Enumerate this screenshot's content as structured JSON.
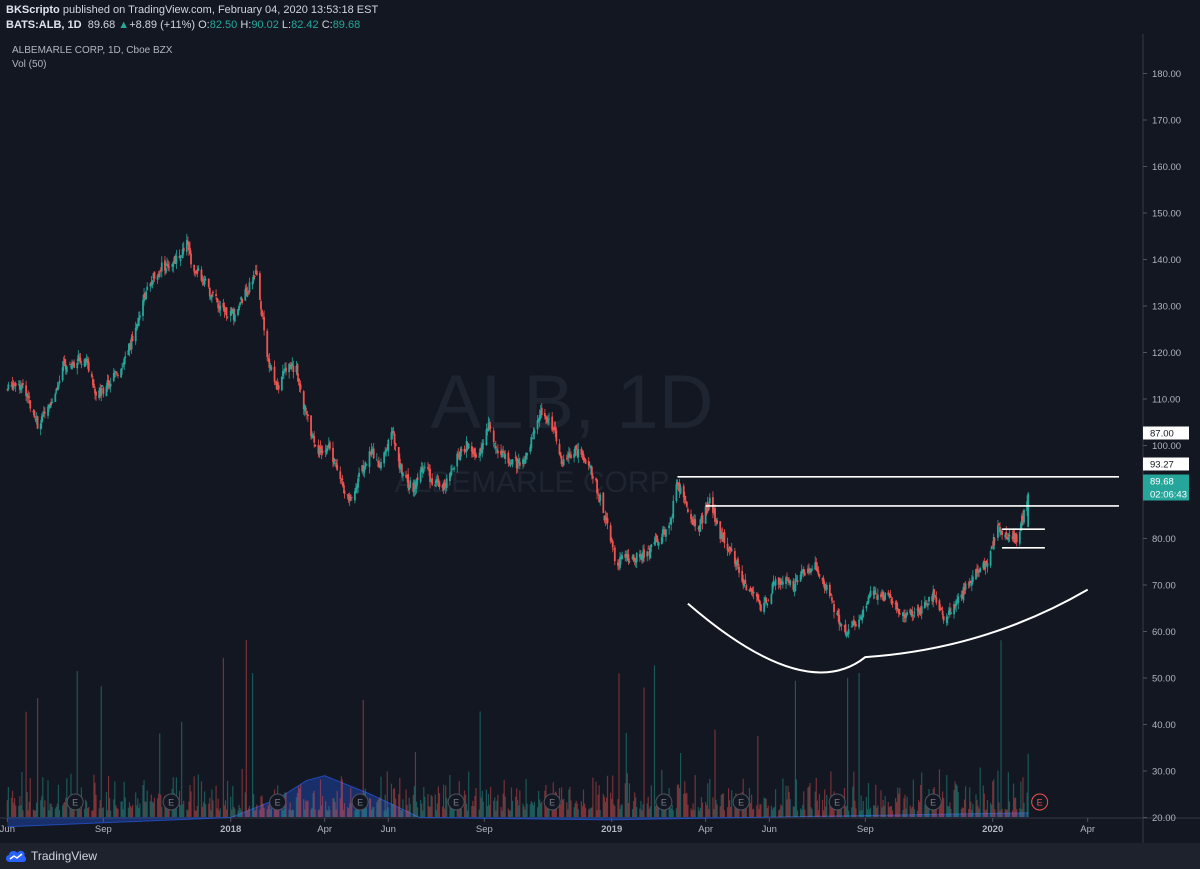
{
  "header": {
    "author": "BKScripto",
    "published": " published on TradingView.com, February 04, 2020 13:53:18 EST",
    "symbol": "BATS:ALB, 1D",
    "price": "89.68",
    "change": "+8.89 (+11%)",
    "o_label": "O:",
    "o_value": "82.50",
    "h_label": "H:",
    "h_value": "90.02",
    "l_label": "L:",
    "l_value": "82.42",
    "c_label": "C:",
    "c_value": "89.68"
  },
  "legend": {
    "title": "ALBEMARLE CORP, 1D, Cboe BZX",
    "volume": "Vol (50)"
  },
  "watermark": {
    "symbol": "ALB, 1D",
    "name": "ALBEMARLE CORP"
  },
  "footer": {
    "brand": "TradingView"
  },
  "colors": {
    "background": "#131722",
    "up": "#26a69a",
    "down": "#ef5350",
    "volume_ma": "#2962ff",
    "annotation": "#ffffff"
  },
  "chart_data": {
    "type": "candlestick",
    "ylim": [
      15,
      185
    ],
    "y_ticks": [
      "180.00",
      "170.00",
      "160.00",
      "150.00",
      "140.00",
      "130.00",
      "120.00",
      "110.00",
      "100.00",
      "90.00",
      "80.00",
      "70.00",
      "60.00",
      "50.00",
      "40.00",
      "30.00",
      "20.00"
    ],
    "x_ticks": [
      "Jun",
      "Sep",
      "2018",
      "Apr",
      "Jun",
      "Sep",
      "2019",
      "Apr",
      "Jun",
      "Sep",
      "2020",
      "Apr"
    ],
    "bold_ticks": [
      "2018",
      "2019",
      "2020"
    ],
    "price_labels": [
      {
        "text": "87.00",
        "style": "white"
      },
      {
        "text": "93.27",
        "style": "white"
      },
      {
        "text": "89.68",
        "style": "green"
      },
      {
        "text": "02:06:43",
        "style": "green"
      }
    ],
    "earnings_marker": "E",
    "close_path": [
      [
        "2017-06-01",
        112
      ],
      [
        "2017-06-10",
        114
      ],
      [
        "2017-06-20",
        111
      ],
      [
        "2017-07-01",
        104
      ],
      [
        "2017-07-15",
        110
      ],
      [
        "2017-07-25",
        117
      ],
      [
        "2017-08-05",
        118
      ],
      [
        "2017-08-15",
        119
      ],
      [
        "2017-08-25",
        111
      ],
      [
        "2017-09-05",
        113
      ],
      [
        "2017-09-15",
        116
      ],
      [
        "2017-09-25",
        120
      ],
      [
        "2017-10-01",
        125
      ],
      [
        "2017-10-10",
        132
      ],
      [
        "2017-10-20",
        137
      ],
      [
        "2017-11-01",
        139
      ],
      [
        "2017-11-10",
        140
      ],
      [
        "2017-11-20",
        143
      ],
      [
        "2017-11-25",
        139
      ],
      [
        "2017-12-05",
        136
      ],
      [
        "2017-12-15",
        132
      ],
      [
        "2017-12-25",
        129
      ],
      [
        "2018-01-05",
        128
      ],
      [
        "2018-01-15",
        133
      ],
      [
        "2018-01-25",
        137
      ],
      [
        "2018-02-01",
        127
      ],
      [
        "2018-02-05",
        119
      ],
      [
        "2018-02-15",
        112
      ],
      [
        "2018-02-25",
        118
      ],
      [
        "2018-03-05",
        116
      ],
      [
        "2018-03-15",
        106
      ],
      [
        "2018-03-25",
        98
      ],
      [
        "2018-04-05",
        100
      ],
      [
        "2018-04-15",
        93
      ],
      [
        "2018-04-25",
        88
      ],
      [
        "2018-05-05",
        94
      ],
      [
        "2018-05-15",
        99
      ],
      [
        "2018-05-25",
        96
      ],
      [
        "2018-06-05",
        103
      ],
      [
        "2018-06-15",
        93
      ],
      [
        "2018-06-25",
        91
      ],
      [
        "2018-07-05",
        95
      ],
      [
        "2018-07-15",
        92
      ],
      [
        "2018-07-25",
        91
      ],
      [
        "2018-08-05",
        97
      ],
      [
        "2018-08-15",
        100
      ],
      [
        "2018-08-25",
        97
      ],
      [
        "2018-09-05",
        104
      ],
      [
        "2018-09-15",
        99
      ],
      [
        "2018-09-25",
        97
      ],
      [
        "2018-10-05",
        96
      ],
      [
        "2018-10-15",
        100
      ],
      [
        "2018-10-25",
        107
      ],
      [
        "2018-11-05",
        104
      ],
      [
        "2018-11-15",
        96
      ],
      [
        "2018-11-25",
        99
      ],
      [
        "2018-12-05",
        98
      ],
      [
        "2018-12-15",
        93
      ],
      [
        "2018-12-25",
        85
      ],
      [
        "2019-01-05",
        75
      ],
      [
        "2019-01-15",
        76
      ],
      [
        "2019-01-25",
        76
      ],
      [
        "2019-02-05",
        77
      ],
      [
        "2019-02-15",
        80
      ],
      [
        "2019-02-25",
        82
      ],
      [
        "2019-03-05",
        92
      ],
      [
        "2019-03-15",
        86
      ],
      [
        "2019-03-25",
        82
      ],
      [
        "2019-04-05",
        88
      ],
      [
        "2019-04-15",
        81
      ],
      [
        "2019-04-25",
        77
      ],
      [
        "2019-05-05",
        72
      ],
      [
        "2019-05-15",
        68
      ],
      [
        "2019-05-25",
        65
      ],
      [
        "2019-06-05",
        70
      ],
      [
        "2019-06-15",
        71
      ],
      [
        "2019-06-25",
        70
      ],
      [
        "2019-07-05",
        73
      ],
      [
        "2019-07-15",
        74
      ],
      [
        "2019-07-25",
        70
      ],
      [
        "2019-08-05",
        63
      ],
      [
        "2019-08-15",
        60
      ],
      [
        "2019-08-25",
        62
      ],
      [
        "2019-09-05",
        68
      ],
      [
        "2019-09-15",
        68
      ],
      [
        "2019-09-25",
        67
      ],
      [
        "2019-10-05",
        63
      ],
      [
        "2019-10-15",
        64
      ],
      [
        "2019-10-25",
        65
      ],
      [
        "2019-11-05",
        68
      ],
      [
        "2019-11-15",
        63
      ],
      [
        "2019-11-25",
        65
      ],
      [
        "2019-12-05",
        69
      ],
      [
        "2019-12-15",
        73
      ],
      [
        "2019-12-25",
        74
      ],
      [
        "2020-01-05",
        82
      ],
      [
        "2020-01-15",
        81
      ],
      [
        "2020-01-25",
        80
      ],
      [
        "2020-02-04",
        89.68
      ]
    ],
    "horizontal_levels": [
      {
        "price": 93.27,
        "from": "2019-03-05",
        "to": "2020-05-01"
      },
      {
        "price": 87.0,
        "from": "2019-04-01",
        "to": "2020-05-01"
      },
      {
        "price": 82.0,
        "from": "2020-01-10",
        "to": "2020-02-20"
      },
      {
        "price": 78.0,
        "from": "2020-01-10",
        "to": "2020-02-20"
      }
    ],
    "cup_curve": {
      "from": "2019-03-15",
      "bottom": "2019-09-01",
      "to": "2020-04-01",
      "left": 66,
      "low": 54.5,
      "right": 69
    },
    "earnings_dates": [
      "2017-08-05",
      "2017-11-05",
      "2018-02-15",
      "2018-05-05",
      "2018-08-05",
      "2018-11-05",
      "2019-02-20",
      "2019-05-05",
      "2019-08-05",
      "2019-11-05",
      "2020-02-15"
    ],
    "volume_ma_shape": [
      [
        "2017-06-01",
        18
      ],
      [
        "2018-01-01",
        20
      ],
      [
        "2018-02-15",
        24
      ],
      [
        "2018-03-15",
        28
      ],
      [
        "2018-04-01",
        29
      ],
      [
        "2018-05-15",
        25
      ],
      [
        "2018-07-01",
        20
      ],
      [
        "2019-01-01",
        19.5
      ],
      [
        "2020-02-04",
        21
      ]
    ]
  }
}
